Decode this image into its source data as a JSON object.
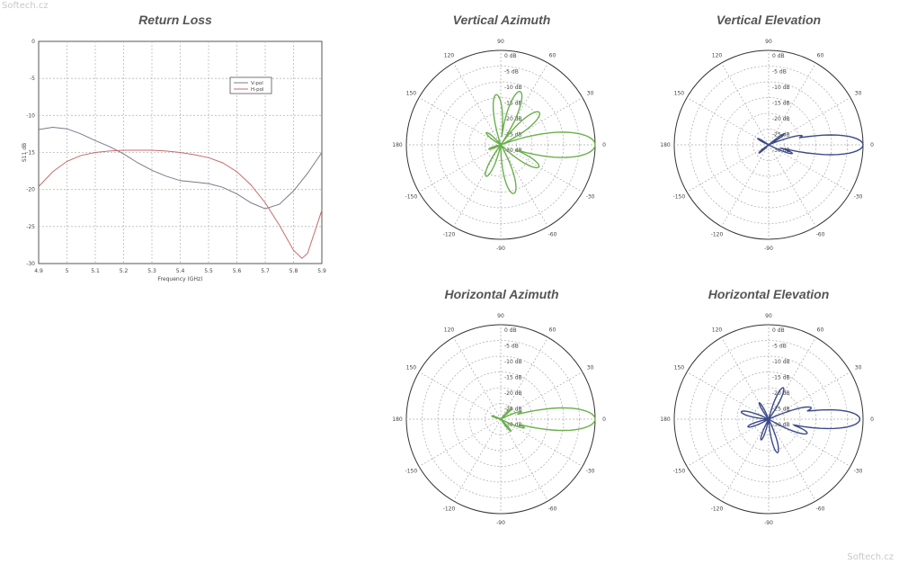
{
  "watermark_top": "Softech.cz",
  "watermark_bottom": "Softech.cz",
  "chart_data": [
    {
      "type": "line",
      "title": "Return Loss",
      "xlabel": "Frequency (GHz)",
      "ylabel": "S11 dB",
      "xlim": [
        4.9,
        5.9
      ],
      "ylim": [
        -30,
        0
      ],
      "x_ticks": [
        "4.9",
        "5",
        "5.1",
        "5.2",
        "5.3",
        "5.4",
        "5.5",
        "5.6",
        "5.7",
        "5.8",
        "5.9"
      ],
      "y_ticks": [
        "0",
        "-5",
        "-10",
        "-15",
        "-20",
        "-25",
        "-30"
      ],
      "grid": true,
      "legend_position": "top-right",
      "series": [
        {
          "name": "V-pol",
          "color": "#7a7a8a",
          "x": [
            4.9,
            4.95,
            5.0,
            5.05,
            5.1,
            5.15,
            5.2,
            5.25,
            5.3,
            5.35,
            5.4,
            5.45,
            5.5,
            5.55,
            5.6,
            5.65,
            5.7,
            5.75,
            5.8,
            5.85,
            5.9
          ],
          "y": [
            -11.9,
            -11.6,
            -11.8,
            -12.5,
            -13.4,
            -14.2,
            -15.2,
            -16.4,
            -17.4,
            -18.2,
            -18.8,
            -19.0,
            -19.2,
            -19.7,
            -20.6,
            -21.8,
            -22.6,
            -22.0,
            -20.2,
            -17.8,
            -15.0
          ]
        },
        {
          "name": "H-pol",
          "color": "#c76b6b",
          "x": [
            4.9,
            4.95,
            5.0,
            5.05,
            5.1,
            5.15,
            5.2,
            5.25,
            5.3,
            5.35,
            5.4,
            5.45,
            5.5,
            5.55,
            5.6,
            5.65,
            5.7,
            5.75,
            5.8,
            5.83,
            5.85,
            5.9
          ],
          "y": [
            -19.6,
            -17.6,
            -16.2,
            -15.4,
            -15.0,
            -14.8,
            -14.7,
            -14.7,
            -14.7,
            -14.8,
            -15.0,
            -15.3,
            -15.7,
            -16.4,
            -17.6,
            -19.4,
            -21.8,
            -24.8,
            -28.2,
            -29.3,
            -28.6,
            -22.8
          ]
        }
      ]
    },
    {
      "type": "polar",
      "title": "Vertical Azimuth",
      "color": "#6ab04c",
      "rlim": [
        -30,
        0
      ],
      "r_ticks": [
        "0 dB",
        "-5 dB",
        "-10 dB",
        "-15 dB",
        "-20 dB",
        "-25 dB",
        "-30 dB"
      ],
      "angle_labels": [
        "0",
        "30",
        "60",
        "90",
        "120",
        "150",
        "180",
        "-150",
        "-120",
        "-90",
        "-60",
        "-30"
      ],
      "lobes": [
        {
          "angle": 0,
          "level": 0,
          "width": 9
        },
        {
          "angle": 40,
          "level": -14,
          "width": 9
        },
        {
          "angle": 70,
          "level": -12,
          "width": 8
        },
        {
          "angle": 95,
          "level": -14,
          "width": 8
        },
        {
          "angle": 140,
          "level": -24,
          "width": 10
        },
        {
          "angle": -30,
          "level": -16,
          "width": 9
        },
        {
          "angle": -75,
          "level": -14,
          "width": 9
        },
        {
          "angle": -115,
          "level": -19,
          "width": 9
        },
        {
          "angle": -160,
          "level": -26,
          "width": 10
        }
      ]
    },
    {
      "type": "polar",
      "title": "Vertical Elevation",
      "color": "#3c4a8a",
      "rlim": [
        -30,
        0
      ],
      "r_ticks": [
        "0 dB",
        "-5 dB",
        "-10 dB",
        "-15 dB",
        "-20 dB",
        "-25 dB",
        "-30 dB"
      ],
      "angle_labels": [
        "0",
        "30",
        "60",
        "90",
        "120",
        "150",
        "180",
        "-150",
        "-120",
        "-90",
        "-60",
        "-30"
      ],
      "lobes": [
        {
          "angle": 0,
          "level": 0,
          "width": 7
        },
        {
          "angle": 15,
          "level": -19,
          "width": 5
        },
        {
          "angle": 35,
          "level": -24,
          "width": 6
        },
        {
          "angle": -20,
          "level": -22,
          "width": 6
        },
        {
          "angle": 150,
          "level": -26,
          "width": 8
        },
        {
          "angle": -140,
          "level": -26,
          "width": 8
        }
      ]
    },
    {
      "type": "polar",
      "title": "Horizontal Azimuth",
      "color": "#6ab04c",
      "rlim": [
        -30,
        0
      ],
      "r_ticks": [
        "0 dB",
        "-5 dB",
        "-10 dB",
        "-15 dB",
        "-20 dB",
        "-25 dB",
        "-30 dB"
      ],
      "angle_labels": [
        "0",
        "30",
        "60",
        "90",
        "120",
        "150",
        "180",
        "-150",
        "-120",
        "-90",
        "-60",
        "-30"
      ],
      "lobes": [
        {
          "angle": 0,
          "level": 0,
          "width": 8
        },
        {
          "angle": 20,
          "level": -23,
          "width": 6
        },
        {
          "angle": 45,
          "level": -25,
          "width": 7
        },
        {
          "angle": -20,
          "level": -22,
          "width": 6
        },
        {
          "angle": -50,
          "level": -25,
          "width": 7
        },
        {
          "angle": 160,
          "level": -27,
          "width": 10
        }
      ]
    },
    {
      "type": "polar",
      "title": "Horizontal Elevation",
      "color": "#3c4a8a",
      "rlim": [
        -30,
        0
      ],
      "r_ticks": [
        "0 dB",
        "-5 dB",
        "-10 dB",
        "-15 dB",
        "-20 dB",
        "-25 dB",
        "-30 dB"
      ],
      "angle_labels": [
        "0",
        "30",
        "60",
        "90",
        "120",
        "150",
        "180",
        "-150",
        "-120",
        "-90",
        "-60",
        "-30"
      ],
      "lobes": [
        {
          "angle": 0,
          "level": -1,
          "width": 7
        },
        {
          "angle": 15,
          "level": -16,
          "width": 6
        },
        {
          "angle": -20,
          "level": -17,
          "width": 7
        },
        {
          "angle": 65,
          "level": -19,
          "width": 8
        },
        {
          "angle": -75,
          "level": -19,
          "width": 8
        },
        {
          "angle": 120,
          "level": -24,
          "width": 8
        },
        {
          "angle": 165,
          "level": -21,
          "width": 9
        },
        {
          "angle": -160,
          "level": -23,
          "width": 9
        },
        {
          "angle": -110,
          "level": -23,
          "width": 8
        }
      ]
    }
  ]
}
